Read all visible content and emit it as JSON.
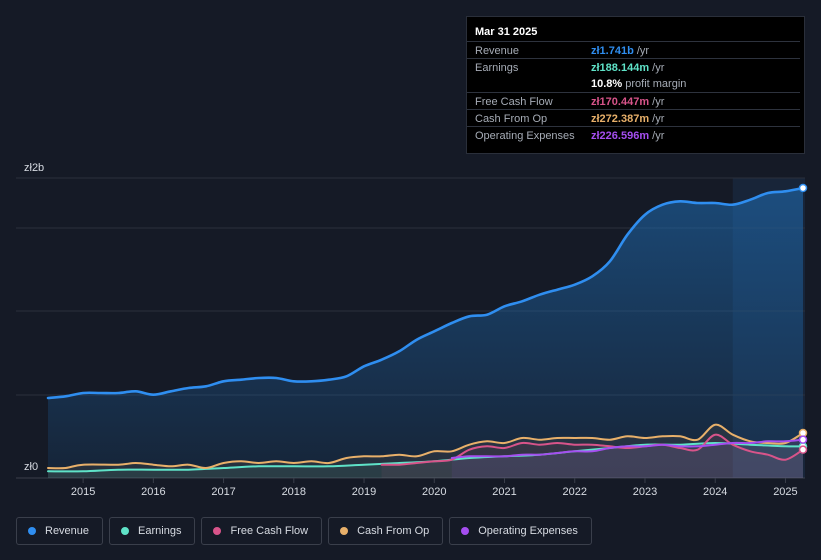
{
  "tooltip": {
    "date": "Mar 31 2025",
    "rows": [
      {
        "label": "Revenue",
        "value": "zł1.741b",
        "suffix": " /yr",
        "color": "#2f8ef0"
      },
      {
        "label": "Earnings",
        "value": "zł188.144m",
        "suffix": " /yr",
        "color": "#5fe3c8"
      },
      {
        "label": "",
        "margin_value": "10.8%",
        "margin_text": " profit margin"
      },
      {
        "label": "Free Cash Flow",
        "value": "zł170.447m",
        "suffix": " /yr",
        "color": "#d8548a"
      },
      {
        "label": "Cash From Op",
        "value": "zł272.387m",
        "suffix": " /yr",
        "color": "#e8b06a"
      },
      {
        "label": "Operating Expenses",
        "value": "zł226.596m",
        "suffix": " /yr",
        "color": "#a54ef0"
      }
    ]
  },
  "legend": [
    {
      "label": "Revenue",
      "color": "#2f8ef0"
    },
    {
      "label": "Earnings",
      "color": "#5fe3c8"
    },
    {
      "label": "Free Cash Flow",
      "color": "#d8548a"
    },
    {
      "label": "Cash From Op",
      "color": "#e8b06a"
    },
    {
      "label": "Operating Expenses",
      "color": "#a54ef0"
    }
  ],
  "chart_data": {
    "type": "line",
    "title": "",
    "xlabel": "",
    "ylabel": "",
    "y_tick_labels": [
      "zł2b",
      "zł0"
    ],
    "ylim": [
      0,
      1.8
    ],
    "xlim": [
      2014.5,
      2025.25
    ],
    "x_ticks": [
      2015,
      2016,
      2017,
      2018,
      2019,
      2020,
      2021,
      2022,
      2023,
      2024,
      2025
    ],
    "x_tick_labels": [
      "2015",
      "2016",
      "2017",
      "2018",
      "2019",
      "2020",
      "2021",
      "2022",
      "2023",
      "2024",
      "2025"
    ],
    "forecast_shade_from": 2024.25,
    "series": [
      {
        "name": "Revenue",
        "color": "#2f8ef0",
        "area": true,
        "points": [
          [
            2014.5,
            0.48
          ],
          [
            2014.75,
            0.49
          ],
          [
            2015.0,
            0.51
          ],
          [
            2015.25,
            0.51
          ],
          [
            2015.5,
            0.51
          ],
          [
            2015.75,
            0.52
          ],
          [
            2016.0,
            0.5
          ],
          [
            2016.25,
            0.52
          ],
          [
            2016.5,
            0.54
          ],
          [
            2016.75,
            0.55
          ],
          [
            2017.0,
            0.58
          ],
          [
            2017.25,
            0.59
          ],
          [
            2017.5,
            0.6
          ],
          [
            2017.75,
            0.6
          ],
          [
            2018.0,
            0.58
          ],
          [
            2018.25,
            0.58
          ],
          [
            2018.5,
            0.59
          ],
          [
            2018.75,
            0.61
          ],
          [
            2019.0,
            0.67
          ],
          [
            2019.25,
            0.71
          ],
          [
            2019.5,
            0.76
          ],
          [
            2019.75,
            0.83
          ],
          [
            2020.0,
            0.88
          ],
          [
            2020.25,
            0.93
          ],
          [
            2020.5,
            0.97
          ],
          [
            2020.75,
            0.98
          ],
          [
            2021.0,
            1.03
          ],
          [
            2021.25,
            1.06
          ],
          [
            2021.5,
            1.1
          ],
          [
            2021.75,
            1.13
          ],
          [
            2022.0,
            1.16
          ],
          [
            2022.25,
            1.21
          ],
          [
            2022.5,
            1.3
          ],
          [
            2022.75,
            1.46
          ],
          [
            2023.0,
            1.58
          ],
          [
            2023.25,
            1.64
          ],
          [
            2023.5,
            1.66
          ],
          [
            2023.75,
            1.65
          ],
          [
            2024.0,
            1.65
          ],
          [
            2024.25,
            1.64
          ],
          [
            2024.5,
            1.67
          ],
          [
            2024.75,
            1.71
          ],
          [
            2025.0,
            1.72
          ],
          [
            2025.25,
            1.74
          ]
        ]
      },
      {
        "name": "Earnings",
        "color": "#5fe3c8",
        "area": false,
        "points": [
          [
            2014.5,
            0.04
          ],
          [
            2015.0,
            0.04
          ],
          [
            2015.5,
            0.05
          ],
          [
            2016.0,
            0.05
          ],
          [
            2016.5,
            0.05
          ],
          [
            2017.0,
            0.06
          ],
          [
            2017.5,
            0.07
          ],
          [
            2018.0,
            0.07
          ],
          [
            2018.5,
            0.07
          ],
          [
            2019.0,
            0.08
          ],
          [
            2019.5,
            0.09
          ],
          [
            2020.0,
            0.1
          ],
          [
            2020.5,
            0.12
          ],
          [
            2021.0,
            0.13
          ],
          [
            2021.5,
            0.14
          ],
          [
            2022.0,
            0.16
          ],
          [
            2022.5,
            0.18
          ],
          [
            2023.0,
            0.2
          ],
          [
            2023.5,
            0.2
          ],
          [
            2024.0,
            0.21
          ],
          [
            2024.5,
            0.2
          ],
          [
            2025.0,
            0.19
          ],
          [
            2025.25,
            0.19
          ]
        ]
      },
      {
        "name": "Free Cash Flow",
        "color": "#d8548a",
        "area": false,
        "points": [
          [
            2019.25,
            0.08
          ],
          [
            2019.5,
            0.08
          ],
          [
            2019.75,
            0.09
          ],
          [
            2020.0,
            0.1
          ],
          [
            2020.25,
            0.11
          ],
          [
            2020.5,
            0.17
          ],
          [
            2020.75,
            0.19
          ],
          [
            2021.0,
            0.18
          ],
          [
            2021.25,
            0.21
          ],
          [
            2021.5,
            0.2
          ],
          [
            2021.75,
            0.21
          ],
          [
            2022.0,
            0.2
          ],
          [
            2022.25,
            0.2
          ],
          [
            2022.5,
            0.19
          ],
          [
            2022.75,
            0.18
          ],
          [
            2023.0,
            0.19
          ],
          [
            2023.25,
            0.2
          ],
          [
            2023.5,
            0.18
          ],
          [
            2023.75,
            0.17
          ],
          [
            2024.0,
            0.26
          ],
          [
            2024.25,
            0.2
          ],
          [
            2024.5,
            0.16
          ],
          [
            2024.75,
            0.14
          ],
          [
            2025.0,
            0.11
          ],
          [
            2025.25,
            0.17
          ]
        ]
      },
      {
        "name": "Cash From Op",
        "color": "#e8b06a",
        "area": false,
        "points": [
          [
            2014.5,
            0.06
          ],
          [
            2014.75,
            0.06
          ],
          [
            2015.0,
            0.08
          ],
          [
            2015.5,
            0.08
          ],
          [
            2015.75,
            0.09
          ],
          [
            2016.0,
            0.08
          ],
          [
            2016.25,
            0.07
          ],
          [
            2016.5,
            0.08
          ],
          [
            2016.75,
            0.06
          ],
          [
            2017.0,
            0.09
          ],
          [
            2017.25,
            0.1
          ],
          [
            2017.5,
            0.09
          ],
          [
            2017.75,
            0.1
          ],
          [
            2018.0,
            0.09
          ],
          [
            2018.25,
            0.1
          ],
          [
            2018.5,
            0.09
          ],
          [
            2018.75,
            0.12
          ],
          [
            2019.0,
            0.13
          ],
          [
            2019.25,
            0.13
          ],
          [
            2019.5,
            0.14
          ],
          [
            2019.75,
            0.13
          ],
          [
            2020.0,
            0.16
          ],
          [
            2020.25,
            0.16
          ],
          [
            2020.5,
            0.2
          ],
          [
            2020.75,
            0.22
          ],
          [
            2021.0,
            0.21
          ],
          [
            2021.25,
            0.24
          ],
          [
            2021.5,
            0.23
          ],
          [
            2021.75,
            0.24
          ],
          [
            2022.0,
            0.24
          ],
          [
            2022.25,
            0.24
          ],
          [
            2022.5,
            0.23
          ],
          [
            2022.75,
            0.25
          ],
          [
            2023.0,
            0.24
          ],
          [
            2023.25,
            0.25
          ],
          [
            2023.5,
            0.25
          ],
          [
            2023.75,
            0.23
          ],
          [
            2024.0,
            0.32
          ],
          [
            2024.25,
            0.26
          ],
          [
            2024.5,
            0.22
          ],
          [
            2024.75,
            0.21
          ],
          [
            2025.0,
            0.21
          ],
          [
            2025.25,
            0.27
          ]
        ]
      },
      {
        "name": "Operating Expenses",
        "color": "#a54ef0",
        "area": false,
        "points": [
          [
            2020.25,
            0.12
          ],
          [
            2020.5,
            0.13
          ],
          [
            2020.75,
            0.13
          ],
          [
            2021.0,
            0.13
          ],
          [
            2021.25,
            0.14
          ],
          [
            2021.5,
            0.14
          ],
          [
            2021.75,
            0.15
          ],
          [
            2022.0,
            0.16
          ],
          [
            2022.25,
            0.16
          ],
          [
            2022.5,
            0.18
          ],
          [
            2022.75,
            0.19
          ],
          [
            2023.0,
            0.19
          ],
          [
            2023.25,
            0.2
          ],
          [
            2023.5,
            0.19
          ],
          [
            2023.75,
            0.19
          ],
          [
            2024.0,
            0.2
          ],
          [
            2024.25,
            0.21
          ],
          [
            2024.5,
            0.21
          ],
          [
            2024.75,
            0.22
          ],
          [
            2025.0,
            0.22
          ],
          [
            2025.25,
            0.23
          ]
        ]
      }
    ]
  }
}
